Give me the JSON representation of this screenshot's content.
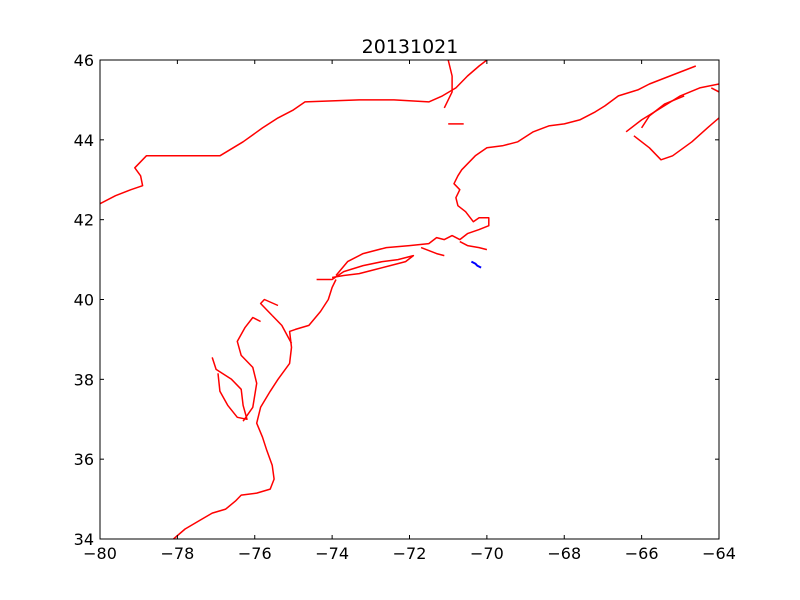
{
  "title": "20131021",
  "colors": {
    "coastline": "#ff0000",
    "track": "#0000ff",
    "axes": "#000000",
    "background": "#ffffff"
  },
  "chart_data": {
    "type": "map-line",
    "title": "20131021",
    "xlabel": "",
    "ylabel": "",
    "xlim": [
      -80,
      -64
    ],
    "ylim": [
      34,
      46
    ],
    "xticks": [
      -80,
      -78,
      -76,
      -74,
      -72,
      -70,
      -68,
      -66,
      -64
    ],
    "yticks": [
      34,
      36,
      38,
      40,
      42,
      44,
      46
    ],
    "xtick_labels": [
      "−80",
      "−78",
      "−76",
      "−74",
      "−72",
      "−70",
      "−68",
      "−66",
      "−64"
    ],
    "ytick_labels": [
      "34",
      "36",
      "38",
      "40",
      "42",
      "44",
      "46"
    ],
    "grid": false,
    "series": [
      {
        "color": "#ff0000",
        "kind": "coastline",
        "segments": [
          [
            [
              -80.0,
              42.4
            ],
            [
              -79.6,
              42.6
            ],
            [
              -79.2,
              42.75
            ],
            [
              -78.9,
              42.85
            ],
            [
              -78.95,
              43.1
            ],
            [
              -79.1,
              43.3
            ],
            [
              -78.8,
              43.6
            ],
            [
              -78.0,
              43.6
            ],
            [
              -76.9,
              43.6
            ],
            [
              -76.3,
              43.95
            ],
            [
              -75.8,
              44.3
            ],
            [
              -75.4,
              44.55
            ],
            [
              -75.0,
              44.75
            ],
            [
              -74.7,
              44.95
            ],
            [
              -73.3,
              45.0
            ],
            [
              -72.4,
              45.0
            ],
            [
              -71.5,
              44.95
            ],
            [
              -71.15,
              45.1
            ],
            [
              -70.8,
              45.3
            ],
            [
              -70.5,
              45.6
            ],
            [
              -70.2,
              45.85
            ],
            [
              -70.0,
              46.0
            ]
          ],
          [
            [
              -71.0,
              46.0
            ],
            [
              -70.9,
              45.6
            ],
            [
              -70.9,
              45.2
            ],
            [
              -71.1,
              44.8
            ]
          ],
          [
            [
              -71.0,
              44.4
            ],
            [
              -70.6,
              44.4
            ]
          ],
          [
            [
              -78.1,
              34.0
            ],
            [
              -77.8,
              34.25
            ],
            [
              -77.45,
              34.45
            ],
            [
              -77.1,
              34.65
            ],
            [
              -76.75,
              34.75
            ],
            [
              -76.5,
              34.95
            ],
            [
              -76.35,
              35.1
            ],
            [
              -75.95,
              35.15
            ],
            [
              -75.6,
              35.25
            ],
            [
              -75.5,
              35.5
            ],
            [
              -75.55,
              35.85
            ],
            [
              -75.7,
              36.25
            ],
            [
              -75.8,
              36.55
            ],
            [
              -75.95,
              36.9
            ],
            [
              -75.85,
              37.3
            ],
            [
              -75.6,
              37.7
            ],
            [
              -75.4,
              38.0
            ],
            [
              -75.1,
              38.4
            ],
            [
              -75.05,
              38.8
            ],
            [
              -75.1,
              39.2
            ],
            [
              -74.95,
              39.25
            ],
            [
              -74.6,
              39.35
            ],
            [
              -74.3,
              39.7
            ],
            [
              -74.1,
              40.0
            ],
            [
              -74.0,
              40.3
            ],
            [
              -73.9,
              40.5
            ]
          ],
          [
            [
              -77.1,
              38.55
            ],
            [
              -77.0,
              38.25
            ],
            [
              -76.6,
              38.0
            ],
            [
              -76.35,
              37.75
            ],
            [
              -76.3,
              37.35
            ],
            [
              -76.2,
              37.0
            ],
            [
              -76.45,
              37.05
            ],
            [
              -76.7,
              37.35
            ],
            [
              -76.9,
              37.7
            ],
            [
              -76.95,
              38.15
            ]
          ],
          [
            [
              -76.3,
              36.95
            ],
            [
              -76.05,
              37.3
            ],
            [
              -75.95,
              37.9
            ],
            [
              -76.05,
              38.3
            ],
            [
              -76.35,
              38.6
            ],
            [
              -76.45,
              38.95
            ],
            [
              -76.25,
              39.3
            ],
            [
              -76.05,
              39.55
            ],
            [
              -75.85,
              39.45
            ]
          ],
          [
            [
              -75.55,
              39.6
            ],
            [
              -75.3,
              39.35
            ],
            [
              -75.05,
              38.9
            ]
          ],
          [
            [
              -75.55,
              39.6
            ],
            [
              -75.85,
              39.9
            ],
            [
              -75.75,
              40.0
            ],
            [
              -75.4,
              39.85
            ]
          ],
          [
            [
              -74.4,
              40.5
            ],
            [
              -74.0,
              40.5
            ],
            [
              -73.7,
              40.7
            ],
            [
              -73.2,
              40.85
            ],
            [
              -72.7,
              40.95
            ],
            [
              -72.3,
              41.0
            ],
            [
              -71.9,
              41.1
            ],
            [
              -72.1,
              40.95
            ],
            [
              -72.5,
              40.85
            ],
            [
              -72.9,
              40.75
            ],
            [
              -73.3,
              40.65
            ],
            [
              -73.7,
              40.6
            ],
            [
              -74.0,
              40.55
            ]
          ],
          [
            [
              -73.9,
              40.6
            ],
            [
              -73.6,
              40.95
            ],
            [
              -73.2,
              41.15
            ],
            [
              -72.6,
              41.3
            ],
            [
              -72.0,
              41.35
            ],
            [
              -71.5,
              41.4
            ],
            [
              -71.3,
              41.55
            ],
            [
              -71.1,
              41.5
            ],
            [
              -70.9,
              41.6
            ],
            [
              -70.7,
              41.5
            ],
            [
              -70.5,
              41.65
            ],
            [
              -70.2,
              41.75
            ],
            [
              -69.95,
              41.85
            ],
            [
              -69.95,
              42.05
            ],
            [
              -70.2,
              42.05
            ],
            [
              -70.35,
              41.95
            ],
            [
              -70.55,
              42.2
            ],
            [
              -70.75,
              42.35
            ],
            [
              -70.8,
              42.55
            ],
            [
              -70.7,
              42.75
            ],
            [
              -70.85,
              42.9
            ],
            [
              -70.75,
              43.1
            ],
            [
              -70.65,
              43.25
            ],
            [
              -70.3,
              43.6
            ],
            [
              -70.0,
              43.8
            ],
            [
              -69.6,
              43.85
            ],
            [
              -69.2,
              43.95
            ],
            [
              -68.8,
              44.2
            ],
            [
              -68.4,
              44.35
            ],
            [
              -68.0,
              44.4
            ],
            [
              -67.6,
              44.5
            ],
            [
              -67.2,
              44.7
            ],
            [
              -66.95,
              44.85
            ],
            [
              -66.6,
              45.1
            ],
            [
              -66.1,
              45.25
            ],
            [
              -65.8,
              45.4
            ],
            [
              -65.4,
              45.55
            ],
            [
              -65.0,
              45.7
            ],
            [
              -64.6,
              45.85
            ]
          ],
          [
            [
              -70.7,
              41.45
            ],
            [
              -70.5,
              41.35
            ],
            [
              -70.2,
              41.3
            ],
            [
              -70.0,
              41.25
            ]
          ],
          [
            [
              -71.7,
              41.3
            ],
            [
              -71.3,
              41.15
            ],
            [
              -71.1,
              41.1
            ]
          ],
          [
            [
              -66.4,
              44.2
            ],
            [
              -66.0,
              44.5
            ],
            [
              -65.5,
              44.8
            ],
            [
              -65.0,
              45.1
            ],
            [
              -64.5,
              45.3
            ],
            [
              -64.0,
              45.4
            ]
          ],
          [
            [
              -66.2,
              44.1
            ],
            [
              -65.8,
              43.8
            ],
            [
              -65.5,
              43.5
            ],
            [
              -65.2,
              43.6
            ],
            [
              -64.7,
              43.95
            ],
            [
              -64.3,
              44.3
            ],
            [
              -64.0,
              44.55
            ]
          ],
          [
            [
              -64.9,
              45.1
            ],
            [
              -65.4,
              44.9
            ],
            [
              -65.8,
              44.6
            ],
            [
              -66.0,
              44.3
            ]
          ],
          [
            [
              -64.2,
              45.3
            ],
            [
              -64.0,
              45.2
            ]
          ]
        ]
      },
      {
        "color": "#0000ff",
        "kind": "track",
        "segments": [
          [
            [
              -70.4,
              40.95
            ],
            [
              -70.3,
              40.9
            ],
            [
              -70.25,
              40.85
            ],
            [
              -70.15,
              40.8
            ]
          ]
        ]
      }
    ]
  }
}
